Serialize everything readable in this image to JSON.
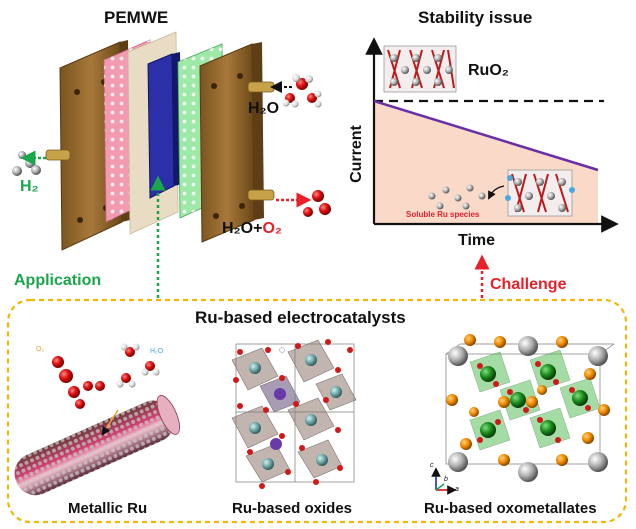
{
  "top_left": {
    "title": "PEMWE",
    "h2o_in": "H₂O",
    "h2_out": "H₂",
    "products": {
      "water": "H₂O",
      "plus": "+",
      "oxygen": "O₂"
    },
    "link_label": "Application"
  },
  "top_right": {
    "title": "Stability issue",
    "crystal_label": "RuO₂",
    "ylabel": "Current",
    "xlabel": "Time",
    "species_label": "Soluble Ru species",
    "link_label": "Challenge"
  },
  "bottom": {
    "title": "Ru-based electrocatalysts",
    "panels": [
      {
        "label": "Metallic Ru",
        "o2": "O₂",
        "h2o": "H₂O"
      },
      {
        "label": "Ru-based oxides"
      },
      {
        "label": "Ru-based oxometallates",
        "axis_c": "c",
        "axis_b": "b",
        "axis_a": "a"
      }
    ]
  },
  "colors": {
    "dashed_frame": "#f2b705",
    "application_arrow": "#1aa64b",
    "challenge_arrow": "#e8202a",
    "current_line": "#6a2fa8",
    "curve_fill": "#f9d9c8"
  }
}
